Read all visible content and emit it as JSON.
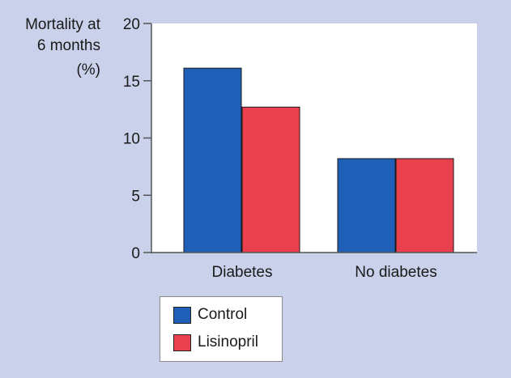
{
  "chart_data": {
    "type": "bar",
    "categories": [
      "Diabetes",
      "No diabetes"
    ],
    "series": [
      {
        "name": "Control",
        "values": [
          16.1,
          8.2
        ],
        "color": "#1f5fb8"
      },
      {
        "name": "Lisinopril",
        "values": [
          12.7,
          8.2
        ],
        "color": "#e8404d"
      }
    ],
    "ylabel_lines": [
      "Mortality at",
      "6 months",
      "(%)"
    ],
    "ylim": [
      0,
      20
    ],
    "yticks": [
      0,
      5,
      10,
      15,
      20
    ],
    "grid": false,
    "legend_position": "bottom-left"
  },
  "colors": {
    "background": "#c9d2ea",
    "plot_background": "#ffffff",
    "axis": "#555555"
  }
}
